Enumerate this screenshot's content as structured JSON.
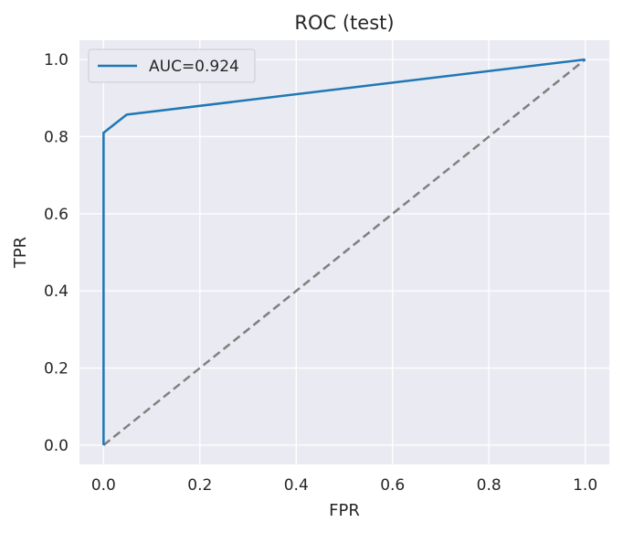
{
  "chart_data": {
    "type": "line",
    "title": "ROC (test)",
    "xlabel": "FPR",
    "ylabel": "TPR",
    "xlim": [
      -0.05,
      1.05
    ],
    "ylim": [
      -0.05,
      1.05
    ],
    "xticks": [
      0.0,
      0.2,
      0.4,
      0.6,
      0.8,
      1.0
    ],
    "yticks": [
      0.0,
      0.2,
      0.4,
      0.6,
      0.8,
      1.0
    ],
    "xtick_labels": [
      "0.0",
      "0.2",
      "0.4",
      "0.6",
      "0.8",
      "1.0"
    ],
    "ytick_labels": [
      "0.0",
      "0.2",
      "0.4",
      "0.6",
      "0.8",
      "1.0"
    ],
    "grid": true,
    "background": "#eaeaf2",
    "legend_position": "top-left",
    "series": [
      {
        "name": "AUC=0.924",
        "color": "#1f77b4",
        "style": "solid",
        "x": [
          0.0,
          0.0,
          0.048,
          1.0
        ],
        "y": [
          0.0,
          0.81,
          0.857,
          1.0
        ]
      },
      {
        "color": "#808080",
        "style": "dashed",
        "x": [
          0.0,
          1.0
        ],
        "y": [
          0.0,
          1.0
        ]
      }
    ]
  }
}
